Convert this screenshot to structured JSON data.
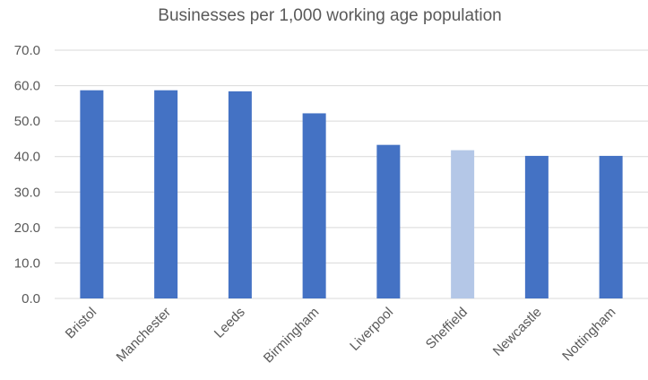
{
  "chart_data": {
    "type": "bar",
    "title": "Businesses per 1,000 working age population",
    "xlabel": "",
    "ylabel": "",
    "ylim": [
      0,
      70
    ],
    "yticks": [
      "0.0",
      "10.0",
      "20.0",
      "30.0",
      "40.0",
      "50.0",
      "60.0",
      "70.0"
    ],
    "categories": [
      "Bristol",
      "Manchester",
      "Leeds",
      "Birmingham",
      "Liverpool",
      "Sheffield",
      "Newcastle",
      "Nottingham"
    ],
    "values": [
      58.7,
      58.7,
      58.4,
      52.2,
      43.3,
      41.8,
      40.2,
      40.2
    ],
    "highlight": "Sheffield",
    "grid": true,
    "legend": "none",
    "colors": {
      "bar": "#4472c4",
      "highlight": "#b4c7e7",
      "grid": "#d9d9d9",
      "text": "#595959"
    }
  }
}
